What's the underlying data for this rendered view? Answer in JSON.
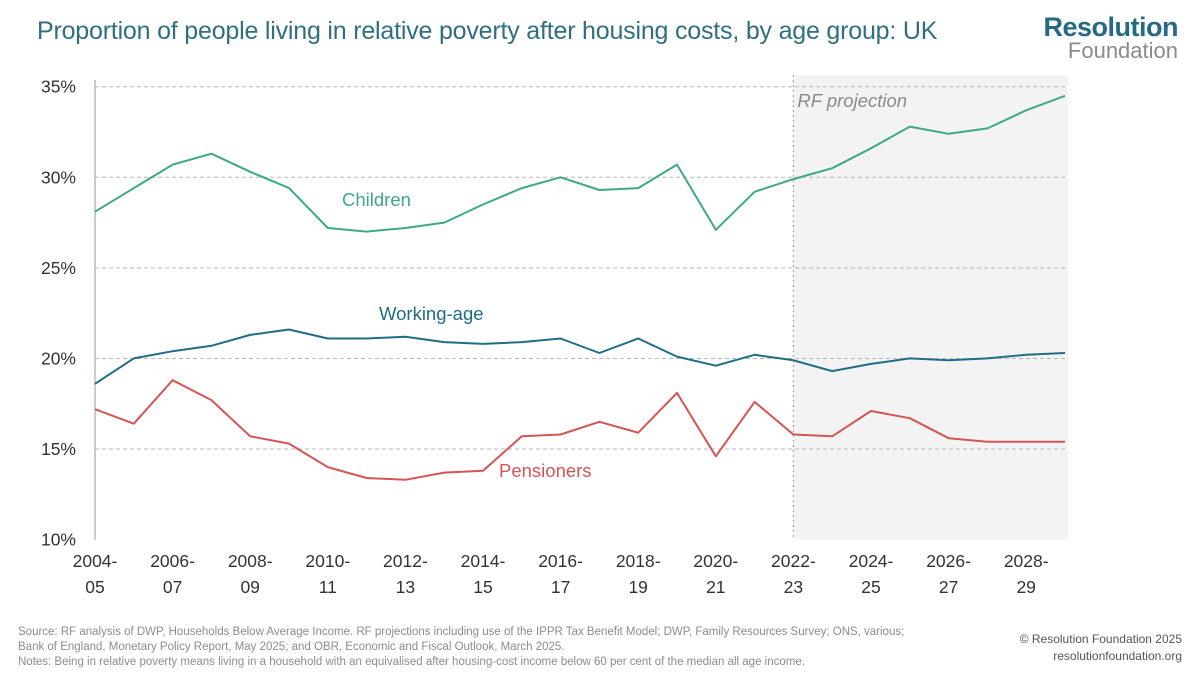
{
  "title": "Proportion of people living in relative poverty after housing costs, by age group: UK",
  "logo": {
    "line1": "Resolution",
    "line2": "Foundation"
  },
  "chart_data": {
    "type": "line",
    "title": "Proportion of people living in relative poverty after housing costs, by age group: UK",
    "xlabel": "",
    "ylabel": "",
    "ylim": [
      10,
      35
    ],
    "y_ticks": [
      "10%",
      "15%",
      "20%",
      "25%",
      "30%",
      "35%"
    ],
    "y_tick_values": [
      10,
      15,
      20,
      25,
      30,
      35
    ],
    "x": [
      "2004-05",
      "2005-06",
      "2006-07",
      "2007-08",
      "2008-09",
      "2009-10",
      "2010-11",
      "2011-12",
      "2012-13",
      "2013-14",
      "2014-15",
      "2015-16",
      "2016-17",
      "2017-18",
      "2018-19",
      "2019-20",
      "2020-21",
      "2021-22",
      "2022-23",
      "2023-24",
      "2024-25",
      "2025-26",
      "2026-27",
      "2027-28",
      "2028-29",
      "2029-30"
    ],
    "x_tick_labels": [
      [
        "2004-",
        "05"
      ],
      [
        "2006-",
        "07"
      ],
      [
        "2008-",
        "09"
      ],
      [
        "2010-",
        "11"
      ],
      [
        "2012-",
        "13"
      ],
      [
        "2014-",
        "15"
      ],
      [
        "2016-",
        "17"
      ],
      [
        "2018-",
        "19"
      ],
      [
        "2020-",
        "21"
      ],
      [
        "2022-",
        "23"
      ],
      [
        "2024-",
        "25"
      ],
      [
        "2026-",
        "27"
      ],
      [
        "2028-",
        "29"
      ]
    ],
    "projection_start": "2022-23",
    "projection_label": "RF projection",
    "grid": true,
    "series": [
      {
        "name": "Children",
        "color": "#3daa85",
        "values": [
          28.1,
          29.4,
          30.7,
          31.3,
          30.3,
          29.4,
          27.2,
          27.0,
          27.2,
          27.5,
          28.5,
          29.4,
          30.0,
          29.3,
          29.4,
          30.7,
          27.1,
          29.2,
          29.9,
          30.5,
          31.6,
          32.8,
          32.4,
          32.7,
          33.7,
          34.5
        ]
      },
      {
        "name": "Working-age",
        "color": "#1f6e86",
        "values": [
          18.6,
          20.0,
          20.4,
          20.7,
          21.3,
          21.6,
          21.1,
          21.1,
          21.2,
          20.9,
          20.8,
          20.9,
          21.1,
          20.3,
          21.1,
          20.1,
          19.6,
          20.2,
          19.9,
          19.3,
          19.7,
          20.0,
          19.9,
          20.0,
          20.2,
          20.3
        ]
      },
      {
        "name": "Pensioners",
        "color": "#d55454",
        "values": [
          17.2,
          16.4,
          18.8,
          17.7,
          15.7,
          15.3,
          14.0,
          13.4,
          13.3,
          13.7,
          13.8,
          15.7,
          15.8,
          16.5,
          15.9,
          18.1,
          14.6,
          17.6,
          15.8,
          15.7,
          17.1,
          16.7,
          15.6,
          15.4,
          15.4,
          15.4
        ]
      }
    ]
  },
  "footer": {
    "source_line1": "Source: RF analysis of DWP, Households Below Average Income. RF projections including use of the IPPR Tax Benefit Model; DWP, Family Resources Survey; ONS, various;",
    "source_line2": "Bank of England, Monetary Policy Report, May 2025; and OBR, Economic and Fiscal Outlook, March 2025.",
    "notes": "Notes: Being in relative poverty means living in a household with an equivalised after housing-cost income below 60 per cent of the median all age income.",
    "copyright": "© Resolution Foundation 2025",
    "website": "resolutionfoundation.org"
  }
}
